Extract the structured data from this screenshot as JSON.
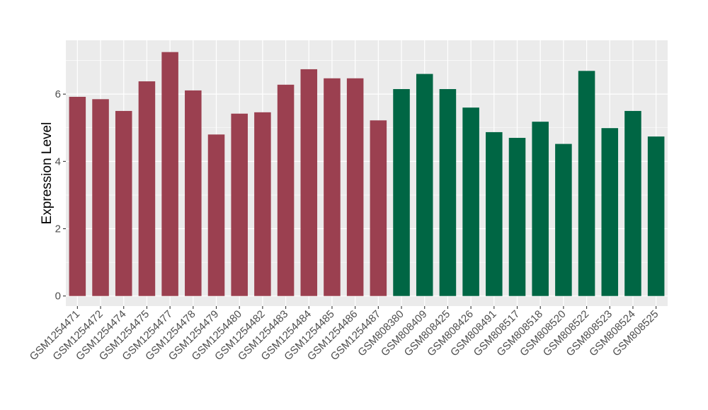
{
  "chart_data": {
    "type": "bar",
    "title": "",
    "xlabel": "",
    "ylabel": "Expression Level",
    "ylim": [
      -0.3,
      7.6
    ],
    "yticks": [
      0,
      2,
      4,
      6
    ],
    "grid": true,
    "legend": "none",
    "categories": [
      "GSM1254471",
      "GSM1254472",
      "GSM1254474",
      "GSM1254475",
      "GSM1254477",
      "GSM1254478",
      "GSM1254479",
      "GSM1254480",
      "GSM1254482",
      "GSM1254483",
      "GSM1254484",
      "GSM1254485",
      "GSM1254486",
      "GSM1254487",
      "GSM808380",
      "GSM808409",
      "GSM808425",
      "GSM808426",
      "GSM808491",
      "GSM808517",
      "GSM808518",
      "GSM808520",
      "GSM808522",
      "GSM808523",
      "GSM808524",
      "GSM808525"
    ],
    "values": [
      5.92,
      5.85,
      5.5,
      6.38,
      7.25,
      6.11,
      4.8,
      5.42,
      5.46,
      6.28,
      6.74,
      6.47,
      6.47,
      5.22,
      6.15,
      6.6,
      6.15,
      5.6,
      4.87,
      4.7,
      5.18,
      4.52,
      6.69,
      4.99,
      5.5,
      4.74
    ],
    "group_colors": [
      "#9b4050",
      "#006644"
    ],
    "bar_groups": [
      0,
      0,
      0,
      0,
      0,
      0,
      0,
      0,
      0,
      0,
      0,
      0,
      0,
      0,
      1,
      1,
      1,
      1,
      1,
      1,
      1,
      1,
      1,
      1,
      1,
      1
    ],
    "panel_background": "#ebebeb",
    "grid_color": "#ffffff"
  }
}
